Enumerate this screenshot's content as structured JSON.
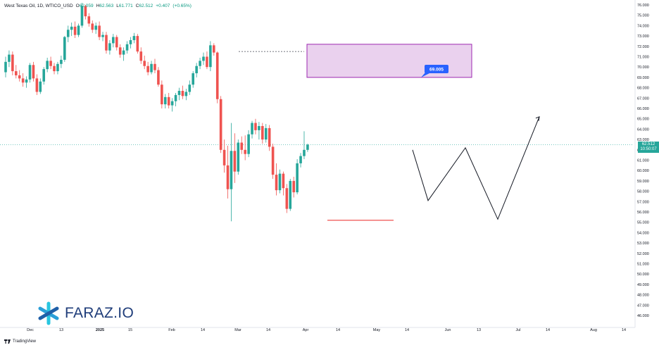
{
  "header": {
    "symbol": "West Texas Oil, 1D, WTICO_USD",
    "open_label": "O",
    "open": "62.059",
    "high_label": "H",
    "high": "62.563",
    "low_label": "L",
    "low": "61.771",
    "close_label": "C",
    "close": "62.512",
    "change": "+0.407",
    "change_pct": "(+0.65%)"
  },
  "price_tag": {
    "price": "62.512",
    "countdown": "10:50:07",
    "color": "#26a69a"
  },
  "zone_label": "69.005",
  "branding": {
    "logo_text": "FARAZ.IO",
    "platform": "TradingView"
  },
  "colors": {
    "up": "#26a69a",
    "down": "#ef5350",
    "zone_fill": "#e1bee7",
    "zone_border": "#9c27b0",
    "label_bg": "#2962ff"
  },
  "chart_data": {
    "type": "candlestick",
    "ylim": [
      45,
      76
    ],
    "yticks": [
      "76.000",
      "75.000",
      "74.000",
      "73.000",
      "72.000",
      "71.000",
      "70.000",
      "69.000",
      "68.000",
      "67.000",
      "66.000",
      "65.000",
      "64.000",
      "63.000",
      "62.000",
      "61.000",
      "60.000",
      "59.000",
      "58.000",
      "57.000",
      "56.000",
      "55.000",
      "54.000",
      "53.000",
      "52.000",
      "51.000",
      "50.000",
      "49.000",
      "48.000",
      "47.000",
      "46.000"
    ],
    "xticks": [
      "Dec",
      "13",
      "2025",
      "15",
      "Feb",
      "14",
      "Mar",
      "14",
      "Apr",
      "14",
      "May",
      "14",
      "Jun",
      "13",
      "Jul",
      "14",
      "Aug",
      "14"
    ],
    "candles": [
      {
        "o": 69.5,
        "h": 71.0,
        "l": 69.0,
        "c": 70.5
      },
      {
        "o": 70.5,
        "h": 71.6,
        "l": 70.0,
        "c": 71.2
      },
      {
        "o": 71.2,
        "h": 71.5,
        "l": 69.2,
        "c": 69.6
      },
      {
        "o": 69.6,
        "h": 70.2,
        "l": 68.9,
        "c": 69.2
      },
      {
        "o": 69.2,
        "h": 69.7,
        "l": 68.6,
        "c": 68.9
      },
      {
        "o": 68.9,
        "h": 69.4,
        "l": 68.1,
        "c": 68.5
      },
      {
        "o": 68.5,
        "h": 69.1,
        "l": 68.0,
        "c": 68.8
      },
      {
        "o": 68.8,
        "h": 70.4,
        "l": 68.5,
        "c": 70.2
      },
      {
        "o": 70.2,
        "h": 70.5,
        "l": 68.6,
        "c": 68.9
      },
      {
        "o": 68.9,
        "h": 69.3,
        "l": 67.3,
        "c": 67.6
      },
      {
        "o": 67.6,
        "h": 68.9,
        "l": 67.4,
        "c": 68.6
      },
      {
        "o": 68.6,
        "h": 70.0,
        "l": 68.3,
        "c": 69.8
      },
      {
        "o": 69.8,
        "h": 70.9,
        "l": 69.5,
        "c": 70.6
      },
      {
        "o": 70.6,
        "h": 71.0,
        "l": 69.8,
        "c": 70.1
      },
      {
        "o": 70.1,
        "h": 70.4,
        "l": 69.3,
        "c": 69.6
      },
      {
        "o": 69.6,
        "h": 70.5,
        "l": 69.3,
        "c": 70.3
      },
      {
        "o": 70.3,
        "h": 71.1,
        "l": 69.9,
        "c": 70.7
      },
      {
        "o": 70.7,
        "h": 73.0,
        "l": 70.5,
        "c": 72.9
      },
      {
        "o": 72.9,
        "h": 74.0,
        "l": 72.4,
        "c": 73.6
      },
      {
        "o": 73.6,
        "h": 74.3,
        "l": 73.0,
        "c": 73.9
      },
      {
        "o": 73.9,
        "h": 74.4,
        "l": 72.8,
        "c": 73.1
      },
      {
        "o": 73.1,
        "h": 74.2,
        "l": 72.9,
        "c": 74.0
      },
      {
        "o": 74.0,
        "h": 76.2,
        "l": 73.8,
        "c": 75.9
      },
      {
        "o": 75.9,
        "h": 76.0,
        "l": 74.6,
        "c": 74.9
      },
      {
        "o": 74.9,
        "h": 75.2,
        "l": 73.9,
        "c": 74.2
      },
      {
        "o": 74.2,
        "h": 74.5,
        "l": 73.3,
        "c": 73.6
      },
      {
        "o": 73.6,
        "h": 74.3,
        "l": 73.2,
        "c": 74.0
      },
      {
        "o": 74.0,
        "h": 74.4,
        "l": 72.6,
        "c": 72.9
      },
      {
        "o": 72.9,
        "h": 73.4,
        "l": 72.5,
        "c": 73.1
      },
      {
        "o": 73.1,
        "h": 73.4,
        "l": 71.3,
        "c": 71.6
      },
      {
        "o": 71.6,
        "h": 72.6,
        "l": 71.2,
        "c": 72.3
      },
      {
        "o": 72.3,
        "h": 73.2,
        "l": 71.9,
        "c": 72.9
      },
      {
        "o": 72.9,
        "h": 73.1,
        "l": 71.6,
        "c": 71.9
      },
      {
        "o": 71.9,
        "h": 72.2,
        "l": 70.9,
        "c": 71.2
      },
      {
        "o": 71.2,
        "h": 71.9,
        "l": 70.6,
        "c": 71.6
      },
      {
        "o": 71.6,
        "h": 72.5,
        "l": 71.3,
        "c": 72.2
      },
      {
        "o": 72.2,
        "h": 72.9,
        "l": 71.8,
        "c": 72.6
      },
      {
        "o": 72.6,
        "h": 73.3,
        "l": 72.3,
        "c": 73.0
      },
      {
        "o": 73.0,
        "h": 73.2,
        "l": 71.3,
        "c": 71.5
      },
      {
        "o": 71.5,
        "h": 71.9,
        "l": 70.3,
        "c": 70.6
      },
      {
        "o": 70.6,
        "h": 71.1,
        "l": 69.8,
        "c": 70.1
      },
      {
        "o": 70.1,
        "h": 70.5,
        "l": 69.2,
        "c": 69.5
      },
      {
        "o": 69.5,
        "h": 70.6,
        "l": 69.3,
        "c": 70.3
      },
      {
        "o": 70.3,
        "h": 70.8,
        "l": 69.4,
        "c": 69.7
      },
      {
        "o": 69.7,
        "h": 70.0,
        "l": 68.1,
        "c": 68.3
      },
      {
        "o": 68.3,
        "h": 68.7,
        "l": 66.0,
        "c": 66.4
      },
      {
        "o": 66.4,
        "h": 67.4,
        "l": 66.0,
        "c": 67.1
      },
      {
        "o": 67.1,
        "h": 67.5,
        "l": 66.0,
        "c": 66.3
      },
      {
        "o": 66.3,
        "h": 67.0,
        "l": 65.7,
        "c": 66.7
      },
      {
        "o": 66.7,
        "h": 67.5,
        "l": 66.2,
        "c": 67.3
      },
      {
        "o": 67.3,
        "h": 68.0,
        "l": 66.8,
        "c": 67.7
      },
      {
        "o": 67.7,
        "h": 68.2,
        "l": 66.9,
        "c": 67.2
      },
      {
        "o": 67.2,
        "h": 67.9,
        "l": 66.8,
        "c": 67.6
      },
      {
        "o": 67.6,
        "h": 68.7,
        "l": 67.3,
        "c": 68.3
      },
      {
        "o": 68.3,
        "h": 69.6,
        "l": 68.0,
        "c": 69.4
      },
      {
        "o": 69.4,
        "h": 70.4,
        "l": 69.0,
        "c": 70.1
      },
      {
        "o": 70.1,
        "h": 70.9,
        "l": 69.8,
        "c": 70.6
      },
      {
        "o": 70.6,
        "h": 71.4,
        "l": 70.2,
        "c": 71.0
      },
      {
        "o": 71.0,
        "h": 71.5,
        "l": 69.8,
        "c": 70.0
      },
      {
        "o": 70.0,
        "h": 72.5,
        "l": 69.6,
        "c": 72.1
      },
      {
        "o": 72.1,
        "h": 72.3,
        "l": 71.1,
        "c": 71.4
      },
      {
        "o": 71.4,
        "h": 71.5,
        "l": 66.5,
        "c": 66.9
      },
      {
        "o": 66.9,
        "h": 67.2,
        "l": 61.7,
        "c": 62.0
      },
      {
        "o": 62.0,
        "h": 63.0,
        "l": 59.8,
        "c": 60.5
      },
      {
        "o": 60.5,
        "h": 62.4,
        "l": 57.3,
        "c": 58.2
      },
      {
        "o": 58.2,
        "h": 64.6,
        "l": 55.1,
        "c": 61.9
      },
      {
        "o": 61.9,
        "h": 63.6,
        "l": 58.8,
        "c": 59.9
      },
      {
        "o": 59.9,
        "h": 63.0,
        "l": 59.6,
        "c": 62.7
      },
      {
        "o": 62.7,
        "h": 63.3,
        "l": 61.6,
        "c": 62.0
      },
      {
        "o": 62.0,
        "h": 63.4,
        "l": 61.0,
        "c": 61.6
      },
      {
        "o": 61.6,
        "h": 63.9,
        "l": 61.3,
        "c": 63.5
      },
      {
        "o": 63.5,
        "h": 64.8,
        "l": 63.1,
        "c": 64.6
      },
      {
        "o": 64.6,
        "h": 65.0,
        "l": 63.5,
        "c": 63.9
      },
      {
        "o": 63.9,
        "h": 64.7,
        "l": 63.0,
        "c": 64.3
      },
      {
        "o": 64.3,
        "h": 64.6,
        "l": 62.6,
        "c": 63.0
      },
      {
        "o": 63.0,
        "h": 64.5,
        "l": 62.7,
        "c": 64.1
      },
      {
        "o": 64.1,
        "h": 64.4,
        "l": 61.9,
        "c": 62.3
      },
      {
        "o": 62.3,
        "h": 62.6,
        "l": 59.2,
        "c": 59.6
      },
      {
        "o": 59.6,
        "h": 60.7,
        "l": 57.6,
        "c": 58.1
      },
      {
        "o": 58.1,
        "h": 60.1,
        "l": 57.8,
        "c": 59.7
      },
      {
        "o": 59.7,
        "h": 59.9,
        "l": 57.6,
        "c": 58.3
      },
      {
        "o": 58.3,
        "h": 58.7,
        "l": 55.9,
        "c": 56.3
      },
      {
        "o": 56.3,
        "h": 59.2,
        "l": 56.1,
        "c": 59.0
      },
      {
        "o": 59.0,
        "h": 59.4,
        "l": 57.4,
        "c": 57.9
      },
      {
        "o": 57.9,
        "h": 61.1,
        "l": 57.7,
        "c": 60.7
      },
      {
        "o": 60.7,
        "h": 61.7,
        "l": 60.3,
        "c": 61.4
      },
      {
        "o": 61.4,
        "h": 63.8,
        "l": 61.1,
        "c": 62.0
      },
      {
        "o": 62.0,
        "h": 62.6,
        "l": 61.8,
        "c": 62.5
      }
    ],
    "annotations": {
      "zone": {
        "top": 72.2,
        "bottom": 69.0,
        "label": "69.005"
      },
      "dashed_level": 71.5,
      "support_line": 55.2,
      "current_price_line": 62.5,
      "projection": [
        {
          "x": 0,
          "y": 62.0
        },
        {
          "x": 1,
          "y": 57.1
        },
        {
          "x": 2,
          "y": 62.2
        },
        {
          "x": 3,
          "y": 55.3
        },
        {
          "x": 4,
          "y": 65.2
        }
      ]
    }
  }
}
